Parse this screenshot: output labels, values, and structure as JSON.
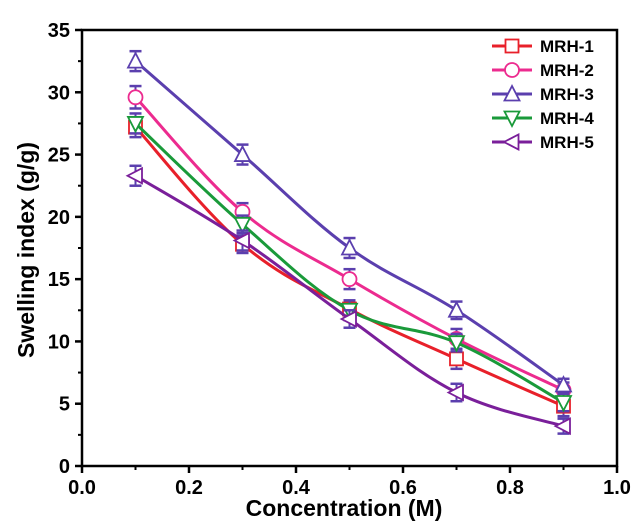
{
  "chart_data": {
    "type": "line",
    "xlabel": "Concentration (M)",
    "ylabel": "Swelling index (g/g)",
    "xlim": [
      0.0,
      1.0
    ],
    "ylim": [
      0,
      35
    ],
    "x_ticks": [
      "0.0",
      "0.2",
      "0.4",
      "0.6",
      "0.8",
      "1.0"
    ],
    "y_ticks": [
      "0",
      "5",
      "10",
      "15",
      "20",
      "25",
      "30",
      "35"
    ],
    "legend_position": "top-right",
    "grid": false,
    "x": [
      0.1,
      0.3,
      0.5,
      0.7,
      0.9
    ],
    "series": [
      {
        "name": "MRH-1",
        "color": "#e8202a",
        "marker": "square",
        "values": [
          27.2,
          17.8,
          12.6,
          8.6,
          4.8
        ],
        "errors": [
          0.8,
          0.7,
          0.6,
          0.8,
          0.8
        ]
      },
      {
        "name": "MRH-2",
        "color": "#ec2b8f",
        "marker": "circle",
        "values": [
          29.6,
          20.4,
          15.0,
          10.2,
          6.1
        ],
        "errors": [
          0.9,
          0.7,
          0.8,
          0.8,
          0.6
        ]
      },
      {
        "name": "MRH-3",
        "color": "#5b3fae",
        "marker": "triangle-up",
        "values": [
          32.5,
          25.0,
          17.5,
          12.5,
          6.5
        ],
        "errors": [
          0.8,
          0.8,
          0.8,
          0.7,
          0.5
        ]
      },
      {
        "name": "MRH-4",
        "color": "#1a9a3a",
        "marker": "triangle-down",
        "values": [
          27.5,
          19.4,
          12.5,
          9.9,
          5.1
        ],
        "errors": [
          0.8,
          0.7,
          0.8,
          0.7,
          0.7
        ]
      },
      {
        "name": "MRH-5",
        "color": "#7a1f9a",
        "marker": "triangle-left",
        "values": [
          23.3,
          18.1,
          11.8,
          5.9,
          3.2
        ],
        "errors": [
          0.8,
          0.8,
          0.7,
          0.7,
          0.6
        ]
      }
    ]
  }
}
